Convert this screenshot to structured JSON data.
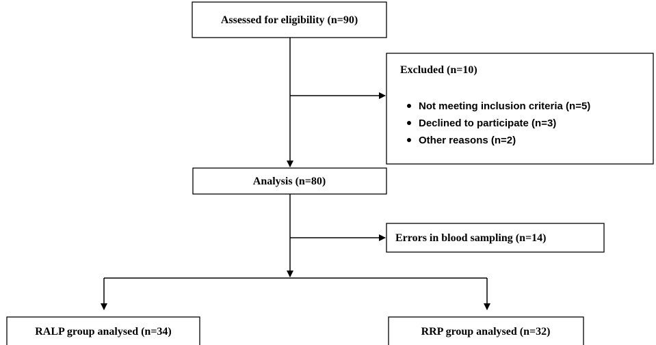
{
  "nodes": [
    {
      "label": "Assessed for eligibility (n=90)"
    },
    {
      "label": "Excluded (n=10)",
      "items": [
        "Not meeting inclusion criteria (n=5)",
        "Declined to participate (n=3)",
        "Other reasons (n=2)"
      ]
    },
    {
      "label": "Analysis (n=80)"
    },
    {
      "label": "Errors in blood sampling  (n=14)"
    },
    {
      "label": "RALP group analysed (n=34)"
    },
    {
      "label": "RRP group analysed (n=32)"
    }
  ]
}
